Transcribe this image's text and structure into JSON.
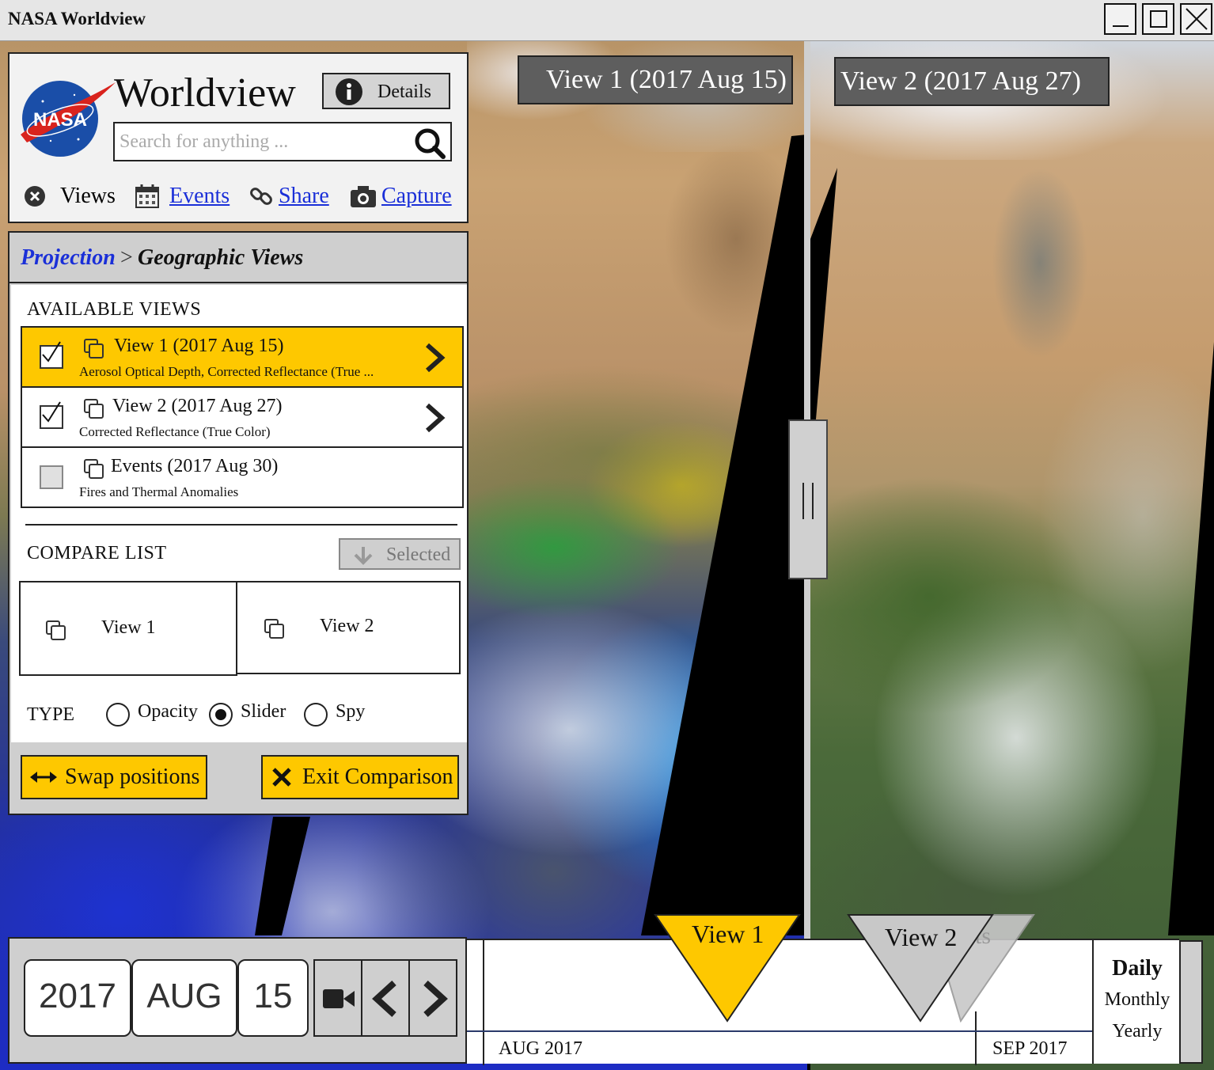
{
  "window": {
    "title": "NASA Worldview",
    "controls": [
      "minimize",
      "maximize",
      "close"
    ]
  },
  "map": {
    "labels": {
      "view1": "View 1 (2017 Aug 15)",
      "view2": "View 2 (2017 Aug 27)"
    }
  },
  "header": {
    "logo_text": "NASA",
    "brand": "Worldview",
    "details_label": "Details",
    "search_placeholder": "Search for anything ...",
    "nav": [
      {
        "label": "Views",
        "icon": "close-circle-icon"
      },
      {
        "label": "Events",
        "icon": "calendar-icon"
      },
      {
        "label": "Share",
        "icon": "link-icon"
      },
      {
        "label": "Capture",
        "icon": "camera-icon"
      }
    ]
  },
  "breadcrumb": {
    "parent": "Projection",
    "separator": ">",
    "current": "Geographic Views"
  },
  "available_views": {
    "heading": "AVAILABLE VIEWS",
    "items": [
      {
        "title": "View 1 (2017 Aug 15)",
        "subtitle": "Aerosol Optical Depth, Corrected Reflectance (True ...",
        "checked": true,
        "selected": true
      },
      {
        "title": "View 2 (2017 Aug 27)",
        "subtitle": "Corrected Reflectance (True Color)",
        "checked": true,
        "selected": false
      },
      {
        "title": "Events (2017 Aug 30)",
        "subtitle": "Fires and Thermal Anomalies",
        "checked": false,
        "selected": false
      }
    ]
  },
  "compare_list": {
    "heading": "COMPARE LIST",
    "selected_label": "Selected",
    "items": [
      "View 1",
      "View 2"
    ]
  },
  "type": {
    "label": "TYPE",
    "options": [
      "Opacity",
      "Slider",
      "Spy"
    ],
    "selected": "Slider"
  },
  "actions": {
    "swap": "Swap positions",
    "exit": "Exit Comparison"
  },
  "date": {
    "year": "2017",
    "month": "AUG",
    "day": "15"
  },
  "timeline": {
    "months": [
      "AUG 2017",
      "SEP 2017"
    ],
    "marker1": "View 1",
    "marker2": "View 2",
    "marker3_partial": "ts",
    "zoom": {
      "options": [
        "Daily",
        "Monthly",
        "Yearly"
      ],
      "selected": "Daily"
    }
  },
  "colors": {
    "accent_yellow": "#fec800",
    "link_blue": "#1a2fd8",
    "panel_gray": "#cfcfcf"
  }
}
